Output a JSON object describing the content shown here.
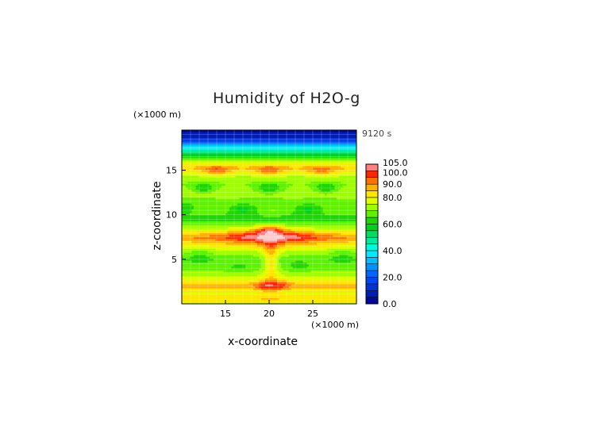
{
  "chart_data": {
    "type": "heatmap",
    "title": "Humidity of H2O-g",
    "xlabel": "x-coordinate",
    "ylabel": "z-coordinate",
    "x_units": "(×1000 m)",
    "y_units": "(×1000 m)",
    "time_label": "9120 s",
    "xlim": [
      10,
      30
    ],
    "ylim": [
      0,
      19.5
    ],
    "x_ticks": [
      15,
      20,
      25
    ],
    "y_ticks": [
      5,
      10,
      15
    ],
    "colorbar": {
      "min": 0,
      "max": 105,
      "labels": [
        "105.0",
        "100.0",
        "90.0",
        "80.0",
        "60.0",
        "40.0",
        "20.0",
        "0.0"
      ],
      "label_values": [
        105,
        100,
        90,
        80,
        60,
        40,
        20,
        0
      ]
    },
    "palette": {
      "0": "#00008c",
      "20": "#0050ff",
      "40": "#00ffff",
      "60": "#00c800",
      "70": "#7fff00",
      "80": "#ffff00",
      "90": "#ff9600",
      "100": "#ff0000",
      "105": "#ffffff"
    },
    "z_profile": [
      {
        "z": 0.0,
        "value": 75
      },
      {
        "z": 0.5,
        "value": 85
      },
      {
        "z": 1.3,
        "value": 78
      },
      {
        "z": 2.0,
        "value": 88
      },
      {
        "z": 3.0,
        "value": 76
      },
      {
        "z": 4.0,
        "value": 68
      },
      {
        "z": 5.0,
        "value": 66
      },
      {
        "z": 6.0,
        "value": 75
      },
      {
        "z": 7.5,
        "value": 90
      },
      {
        "z": 8.5,
        "value": 73
      },
      {
        "z": 9.5,
        "value": 62
      },
      {
        "z": 10.5,
        "value": 70
      },
      {
        "z": 11.5,
        "value": 68
      },
      {
        "z": 12.5,
        "value": 74
      },
      {
        "z": 13.5,
        "value": 70
      },
      {
        "z": 14.5,
        "value": 76
      },
      {
        "z": 15.3,
        "value": 86
      },
      {
        "z": 16.0,
        "value": 75
      },
      {
        "z": 17.0,
        "value": 50
      },
      {
        "z": 17.8,
        "value": 32
      },
      {
        "z": 18.5,
        "value": 12
      },
      {
        "z": 19.5,
        "value": 3
      }
    ],
    "features": [
      {
        "x": 20.2,
        "z": 7.6,
        "sx": 5.0,
        "sz": 0.9,
        "amp": 18
      },
      {
        "x": 20.2,
        "z": 5.0,
        "sx": 0.9,
        "sz": 3.0,
        "amp": 14
      },
      {
        "x": 19.5,
        "z": 2.0,
        "sx": 1.2,
        "sz": 0.6,
        "amp": 10
      },
      {
        "x": 21.5,
        "z": 2.1,
        "sx": 1.0,
        "sz": 0.6,
        "amp": 9
      },
      {
        "x": 20.0,
        "z": 8.4,
        "sx": 1.5,
        "sz": 0.4,
        "amp": 14
      },
      {
        "x": 14.0,
        "z": 15.0,
        "sx": 1.5,
        "sz": 0.5,
        "amp": 12
      },
      {
        "x": 20.0,
        "z": 15.0,
        "sx": 1.5,
        "sz": 0.5,
        "amp": 12
      },
      {
        "x": 26.0,
        "z": 15.0,
        "sx": 1.5,
        "sz": 0.5,
        "amp": 10
      },
      {
        "x": 12.5,
        "z": 13.0,
        "sx": 1.4,
        "sz": 0.6,
        "amp": -11
      },
      {
        "x": 20.0,
        "z": 13.0,
        "sx": 1.6,
        "sz": 0.6,
        "amp": -12
      },
      {
        "x": 26.5,
        "z": 13.0,
        "sx": 1.4,
        "sz": 0.6,
        "amp": -11
      },
      {
        "x": 10.5,
        "z": 10.8,
        "sx": 1.0,
        "sz": 0.6,
        "amp": -9
      },
      {
        "x": 17.0,
        "z": 10.6,
        "sx": 1.8,
        "sz": 0.6,
        "amp": -11
      },
      {
        "x": 24.5,
        "z": 10.6,
        "sx": 1.8,
        "sz": 0.6,
        "amp": -11
      },
      {
        "x": 12.0,
        "z": 5.6,
        "sx": 1.6,
        "sz": 0.8,
        "amp": -6
      },
      {
        "x": 28.5,
        "z": 5.6,
        "sx": 1.6,
        "sz": 0.8,
        "amp": -6
      },
      {
        "x": 16.5,
        "z": 4.0,
        "sx": 1.4,
        "sz": 0.6,
        "amp": -4
      },
      {
        "x": 23.5,
        "z": 4.2,
        "sx": 1.4,
        "sz": 0.6,
        "amp": -4
      }
    ],
    "grid": true,
    "legend": "colorbar-right"
  }
}
